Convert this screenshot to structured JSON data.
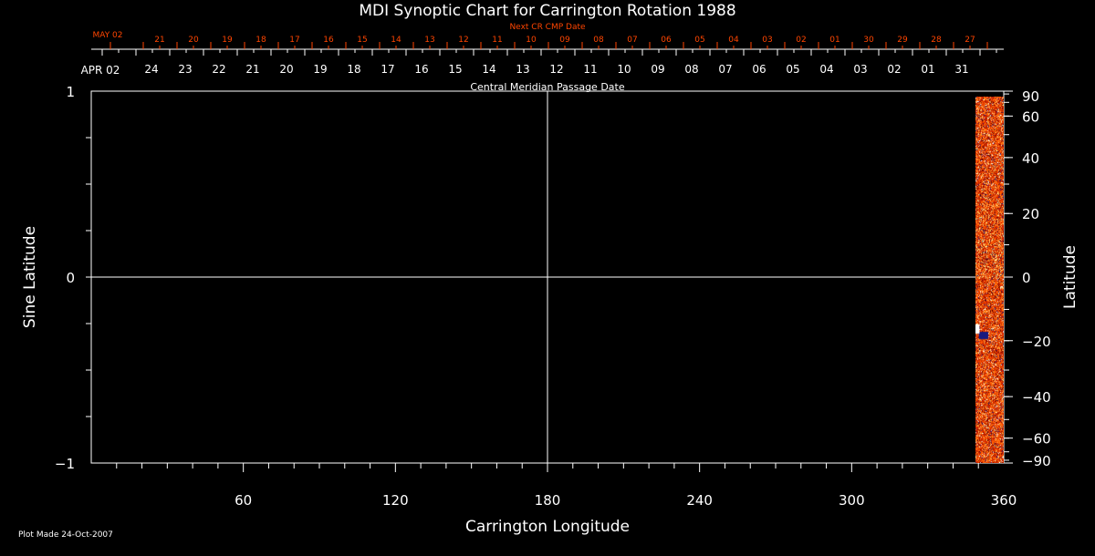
{
  "chart_data": {
    "type": "heatmap",
    "title": "MDI Synoptic Chart for Carrington Rotation 1988",
    "xlabel": "Carrington Longitude",
    "ylabel": "Sine Latitude",
    "y2label": "Latitude",
    "xlim": [
      0,
      360
    ],
    "ylim": [
      -1,
      1
    ],
    "xticks": [
      60,
      120,
      180,
      240,
      300,
      360
    ],
    "yticks": [
      "1",
      "0",
      "−1"
    ],
    "yticks_values": [
      1,
      0,
      -1
    ],
    "y2ticks": [
      90,
      60,
      40,
      20,
      0,
      -20,
      -40,
      -60,
      -90
    ],
    "y2tick_labels": [
      "90",
      "60",
      "40",
      "20",
      "0",
      "−20",
      "−40",
      "−60",
      "−90"
    ],
    "grid_lines": {
      "x": 180,
      "y": 0
    },
    "data_coverage_longitude": [
      349,
      360
    ],
    "colormap": [
      "#5a0000",
      "#c81e00",
      "#ff5a00",
      "#ff9a30",
      "#ffe890",
      "#ffffff",
      "#1a1a80"
    ],
    "top_axis": {
      "label": "Central Meridian Passage Date",
      "start_label": "APR 02",
      "dates": [
        "24",
        "23",
        "22",
        "21",
        "20",
        "19",
        "18",
        "17",
        "16",
        "15",
        "14",
        "13",
        "12",
        "11",
        "10",
        "09",
        "08",
        "07",
        "06",
        "05",
        "04",
        "03",
        "02",
        "01",
        "31"
      ]
    },
    "next_axis": {
      "label": "Next CR CMP Date",
      "start_label": "MAY 02",
      "dates": [
        "21",
        "20",
        "19",
        "18",
        "17",
        "16",
        "15",
        "14",
        "13",
        "12",
        "11",
        "10",
        "09",
        "08",
        "07",
        "06",
        "05",
        "04",
        "03",
        "02",
        "01",
        "30",
        "29",
        "28",
        "27"
      ],
      "color": "#ff4500"
    }
  },
  "footer": {
    "plot_made": "Plot Made 24-Oct-2007"
  }
}
